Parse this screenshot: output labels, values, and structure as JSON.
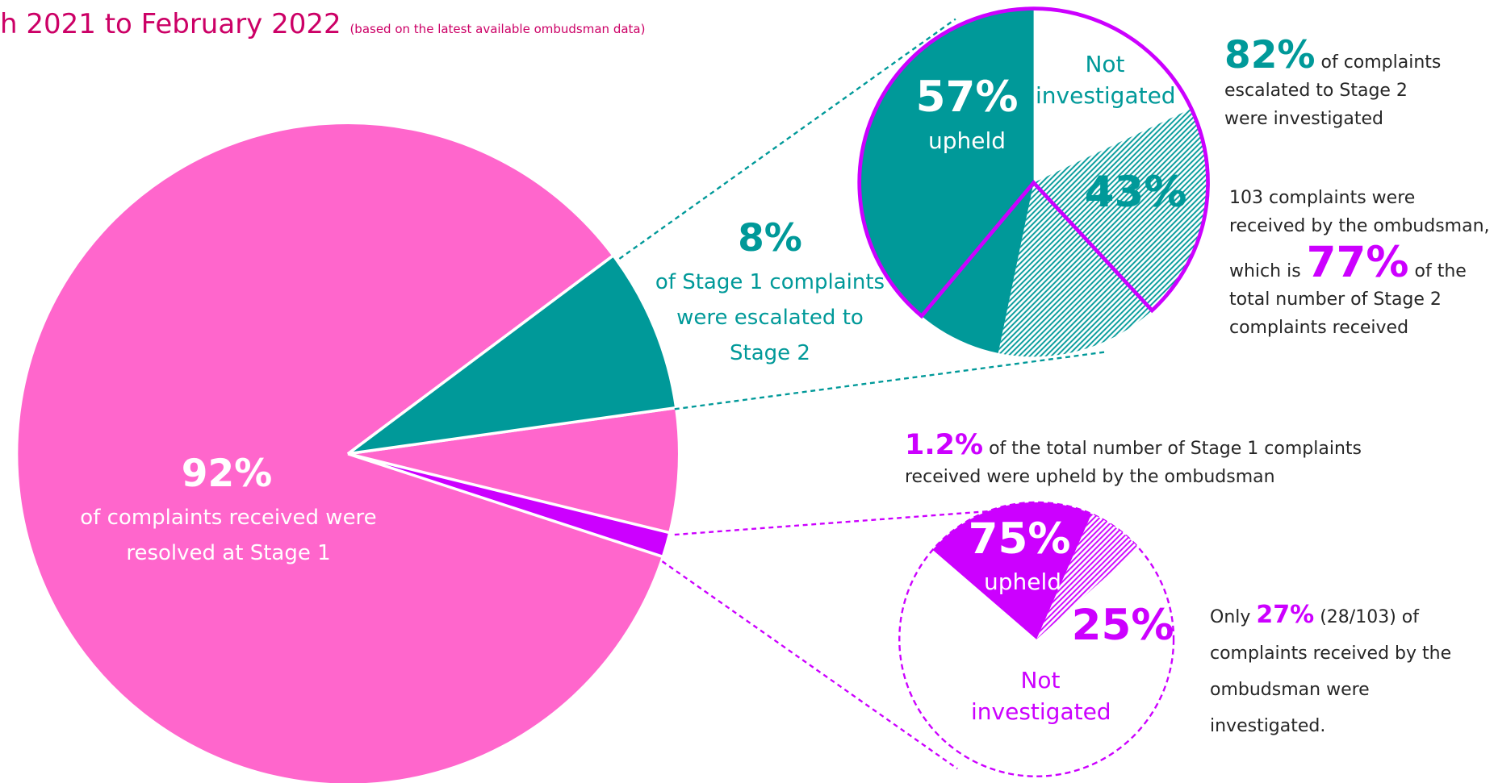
{
  "subtitle": "h 2021 to February 2022",
  "note": "(based on the latest available ombudsman data)",
  "chart_data": [
    {
      "type": "pie",
      "values": [
        92,
        8
      ],
      "value_labels": [
        "92%",
        "8%"
      ],
      "labels": [
        "of complaints received were resolved at Stage 1",
        "of Stage 1 complaints were escalated to Stage 2"
      ],
      "colors": [
        "#ff66cc",
        "#009999"
      ],
      "highlight": {
        "value": 1.2,
        "value_label": "1.2%",
        "label": "of the total number of Stage 1 complaints received were upheld by the ombudsman",
        "color": "#cc00ff"
      }
    },
    {
      "type": "pie",
      "investigated": {
        "value": 82,
        "value_label": "82%",
        "label": "of complaints escalated to Stage 2 were investigated"
      },
      "split": {
        "values": [
          57,
          43
        ],
        "value_labels": [
          "57%",
          "43%"
        ],
        "upheld_label": "upheld"
      },
      "not_investigated_label": "Not investigated",
      "received": {
        "text": "103 complaints were received by the ombudsman, which is",
        "value": 77,
        "value_label": "77%",
        "label": "of the total number of Stage 2 complaints received"
      },
      "color": "#009999",
      "outline_color": "#cc00ff"
    },
    {
      "type": "pie",
      "investigated": {
        "prefix": "Only",
        "value": 27,
        "value_label": "27%",
        "suffix": "(28/103) of",
        "label": "complaints received by the ombudsman were investigated."
      },
      "split": {
        "values": [
          75,
          25
        ],
        "value_labels": [
          "75%",
          "25%"
        ],
        "upheld_label": "upheld"
      },
      "not_investigated_label": "Not investigated",
      "color": "#cc00ff"
    }
  ]
}
